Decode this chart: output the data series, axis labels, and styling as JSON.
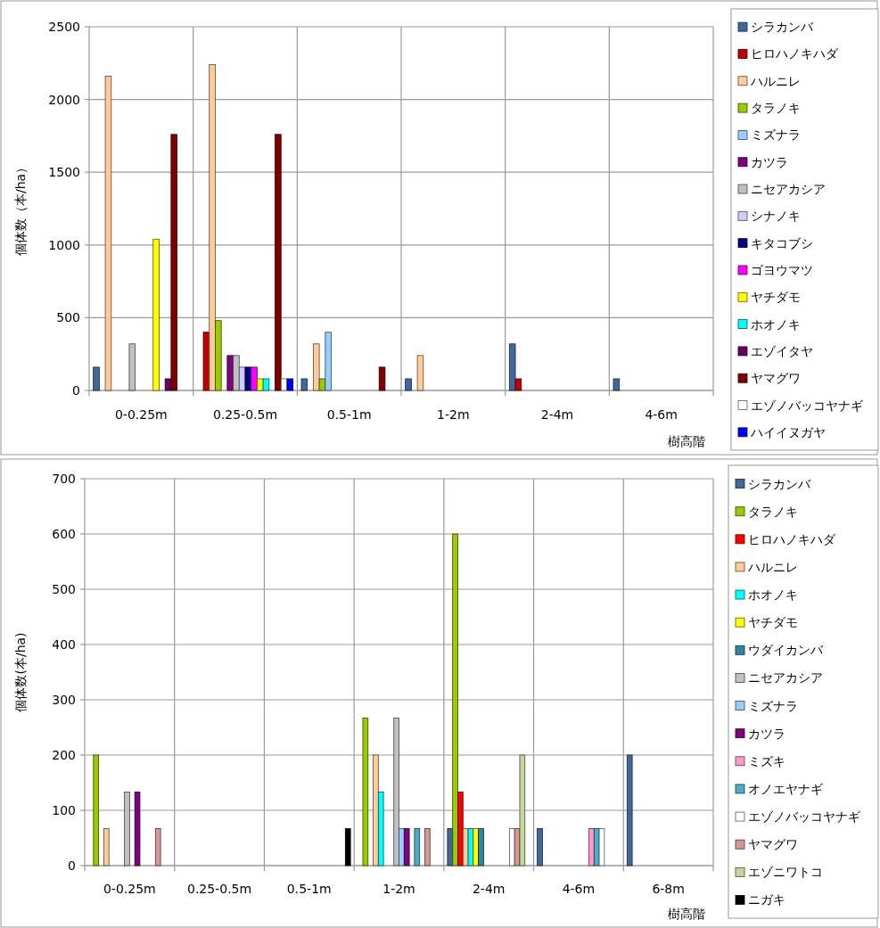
{
  "chart_data": [
    {
      "type": "bar",
      "xlabel": "樹高階",
      "ylabel": "個体数（本/ha）",
      "categories": [
        "0-0.25m",
        "0.25-0.5m",
        "0.5-1m",
        "1-2m",
        "2-4m",
        "4-6m"
      ],
      "ylim": [
        0,
        2500
      ],
      "yticks": [
        0,
        500,
        1000,
        1500,
        2000,
        2500
      ],
      "grid": true,
      "legend": "right",
      "series": [
        {
          "name": "シラカンバ",
          "color": "#41689c",
          "values": [
            160,
            null,
            80,
            80,
            320,
            80
          ]
        },
        {
          "name": "ヒロハノキハダ",
          "color": "#c00000",
          "values": [
            null,
            400,
            null,
            null,
            80,
            null
          ]
        },
        {
          "name": "ハルニレ",
          "color": "#ffcc99",
          "values": [
            2160,
            2240,
            320,
            240,
            null,
            null
          ]
        },
        {
          "name": "タラノキ",
          "color": "#99cc00",
          "values": [
            null,
            480,
            80,
            null,
            null,
            null
          ]
        },
        {
          "name": "ミズナラ",
          "color": "#99ccff",
          "values": [
            null,
            null,
            400,
            null,
            null,
            null
          ]
        },
        {
          "name": "カツラ",
          "color": "#800080",
          "values": [
            null,
            240,
            null,
            null,
            null,
            null
          ]
        },
        {
          "name": "ニセアカシア",
          "color": "#c0c0c0",
          "values": [
            320,
            240,
            null,
            null,
            null,
            null
          ]
        },
        {
          "name": "シナノキ",
          "color": "#ccccff",
          "values": [
            null,
            160,
            null,
            null,
            null,
            null
          ]
        },
        {
          "name": "キタコブシ",
          "color": "#000080",
          "values": [
            null,
            160,
            null,
            null,
            null,
            null
          ]
        },
        {
          "name": "ゴヨウマツ",
          "color": "#ff00ff",
          "values": [
            null,
            160,
            null,
            null,
            null,
            null
          ]
        },
        {
          "name": "ヤチダモ",
          "color": "#ffff00",
          "values": [
            1040,
            80,
            null,
            null,
            null,
            null
          ]
        },
        {
          "name": "ホオノキ",
          "color": "#00ffff",
          "values": [
            null,
            80,
            null,
            null,
            null,
            null
          ]
        },
        {
          "name": "エゾイタヤ",
          "color": "#660066",
          "values": [
            80,
            null,
            null,
            null,
            null,
            null
          ]
        },
        {
          "name": "ヤマグワ",
          "color": "#800000",
          "values": [
            1760,
            1760,
            160,
            null,
            null,
            null
          ]
        },
        {
          "name": "エゾノバッコヤナギ",
          "color": "#ffffff",
          "values": [
            null,
            80,
            null,
            null,
            null,
            null
          ]
        },
        {
          "name": "ハイイヌガヤ",
          "color": "#0000ff",
          "values": [
            null,
            80,
            null,
            null,
            null,
            null
          ]
        }
      ]
    },
    {
      "type": "bar",
      "xlabel": "樹高階",
      "ylabel": "個体数(本/ha)",
      "categories": [
        "0-0.25m",
        "0.25-0.5m",
        "0.5-1m",
        "1-2m",
        "2-4m",
        "4-6m",
        "6-8m"
      ],
      "ylim": [
        0,
        700
      ],
      "yticks": [
        0,
        100,
        200,
        300,
        400,
        500,
        600,
        700
      ],
      "grid": true,
      "legend": "right",
      "series": [
        {
          "name": "シラカンバ",
          "color": "#41689c",
          "values": [
            null,
            null,
            null,
            null,
            67,
            67,
            200
          ]
        },
        {
          "name": "タラノキ",
          "color": "#99cc00",
          "values": [
            200,
            null,
            null,
            267,
            600,
            null,
            null
          ]
        },
        {
          "name": "ヒロハノキハダ",
          "color": "#ff0000",
          "values": [
            null,
            null,
            null,
            null,
            133,
            null,
            null
          ]
        },
        {
          "name": "ハルニレ",
          "color": "#ffcc99",
          "values": [
            67,
            null,
            null,
            200,
            67,
            null,
            null
          ]
        },
        {
          "name": "ホオノキ",
          "color": "#00ffff",
          "values": [
            null,
            null,
            null,
            133,
            67,
            null,
            null
          ]
        },
        {
          "name": "ヤチダモ",
          "color": "#ffff00",
          "values": [
            null,
            null,
            null,
            null,
            67,
            null,
            null
          ]
        },
        {
          "name": "ウダイカンバ",
          "color": "#31859c",
          "values": [
            null,
            null,
            null,
            null,
            67,
            null,
            null
          ]
        },
        {
          "name": "ニセアカシア",
          "color": "#c0c0c0",
          "values": [
            133,
            null,
            null,
            267,
            null,
            null,
            null
          ]
        },
        {
          "name": "ミズナラ",
          "color": "#99ccff",
          "values": [
            null,
            null,
            null,
            67,
            null,
            null,
            null
          ]
        },
        {
          "name": "カツラ",
          "color": "#800080",
          "values": [
            133,
            null,
            null,
            67,
            null,
            null,
            null
          ]
        },
        {
          "name": "ミズキ",
          "color": "#ff99cc",
          "values": [
            null,
            null,
            null,
            null,
            null,
            67,
            null
          ]
        },
        {
          "name": "オノエヤナギ",
          "color": "#4bacc6",
          "values": [
            null,
            null,
            null,
            67,
            null,
            67,
            null
          ]
        },
        {
          "name": "エゾノバッコヤナギ",
          "color": "#ffffff",
          "values": [
            null,
            null,
            null,
            null,
            67,
            67,
            null
          ]
        },
        {
          "name": "ヤマグワ",
          "color": "#da9694",
          "values": [
            67,
            null,
            null,
            67,
            67,
            null,
            null
          ]
        },
        {
          "name": "エゾニワトコ",
          "color": "#c3d69b",
          "values": [
            null,
            null,
            null,
            null,
            200,
            null,
            null
          ]
        },
        {
          "name": "ニガキ",
          "color": "#000000",
          "values": [
            null,
            null,
            67,
            null,
            null,
            null,
            null
          ]
        }
      ]
    }
  ]
}
